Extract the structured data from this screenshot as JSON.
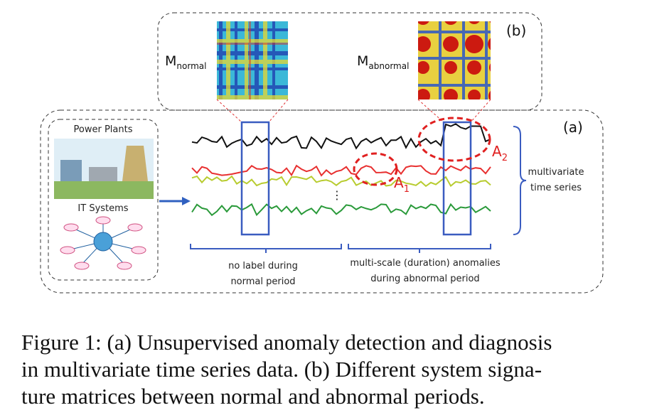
{
  "panel_b": {
    "label": "(b)",
    "matrices": [
      {
        "symbol": "M",
        "subscript": "normal"
      },
      {
        "symbol": "M",
        "subscript": "abnormal"
      }
    ]
  },
  "panel_a": {
    "label": "(a)",
    "sources": [
      "Power Plants",
      "IT Systems"
    ],
    "gap_marker": "⋮",
    "series_label": [
      "multivariate",
      "time series"
    ],
    "anomalies": [
      {
        "symbol": "A",
        "subscript": "1"
      },
      {
        "symbol": "A",
        "subscript": "2"
      }
    ],
    "periods": [
      {
        "lines": [
          "no label during",
          "normal period"
        ]
      },
      {
        "lines": [
          "multi-scale (duration) anomalies",
          "during abnormal period"
        ]
      }
    ]
  },
  "caption": {
    "lines": [
      "Figure 1: (a) Unsupervised anomaly detection and diagnosis",
      "in multivariate time series data. (b) Different system signa-",
      "ture matrices between normal and abnormal periods."
    ]
  }
}
